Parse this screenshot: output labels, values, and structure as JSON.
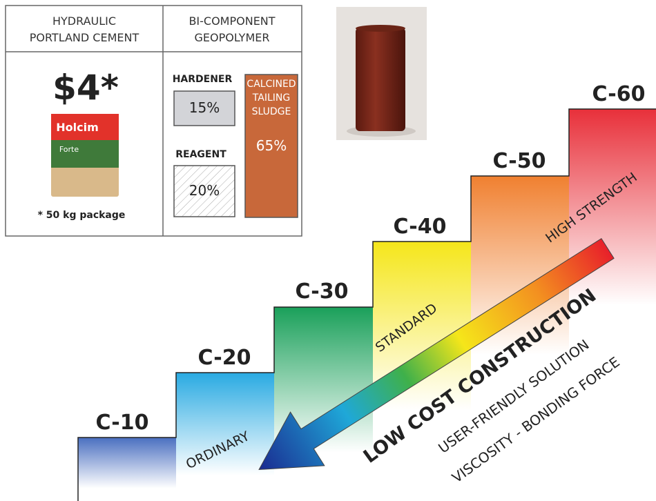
{
  "table": {
    "left": {
      "header": [
        "HYDRAULIC",
        "PORTLAND CEMENT"
      ],
      "price": "$4*",
      "bag": [
        "Holcim",
        "Forte"
      ],
      "note": "* 50 kg package"
    },
    "right": {
      "header": [
        "BI-COMPONENT",
        "GEOPOLYMER"
      ],
      "hardener": {
        "label": "HARDENER",
        "value": "15%"
      },
      "reagent": {
        "label": "REAGENT",
        "value": "20%"
      },
      "sludge": {
        "label": [
          "CALCINED",
          "TAILING",
          "SLUDGE"
        ],
        "value": "65%"
      }
    }
  },
  "steps": [
    "C-10",
    "C-20",
    "C-30",
    "C-40",
    "C-50",
    "C-60"
  ],
  "tiers": [
    "ORDINARY",
    "STANDARD",
    "HIGH STRENGTH"
  ],
  "arrow": {
    "title": "LOW COST CONSTRUCTION",
    "lines": [
      "USER-FRIENDLY SOLUTION",
      "VISCOSITY - BONDING FORCE"
    ]
  }
}
